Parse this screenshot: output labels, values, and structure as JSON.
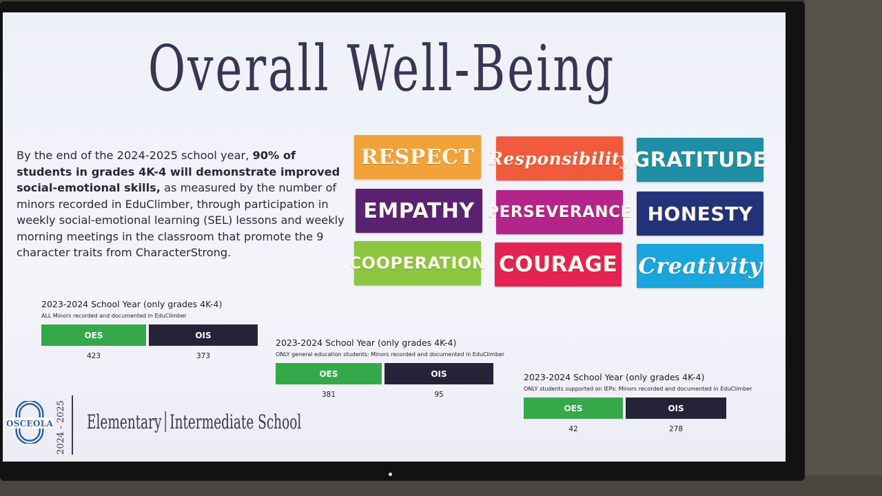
{
  "slide": {
    "title": "Overall Well-Being",
    "goal": {
      "intro": "By the end of the 2024-2025 school year, ",
      "bold": "90% of students in grades 4K-4 will demonstrate improved social-emotional skills,",
      "rest": " as measured by the number of minors recorded in EduClimber, through participation in weekly social-emotional learning (SEL) lessons and weekly morning meetings in the classroom that promote the 9 character traits from CharacterStrong."
    },
    "traits": [
      {
        "label": "RESPECT",
        "color": "#f3a23a"
      },
      {
        "label": "Responsibility",
        "color": "#f15a3c"
      },
      {
        "label": "GRATITUDE",
        "color": "#1f8fa7"
      },
      {
        "label": "EMPATHY",
        "color": "#5a2271"
      },
      {
        "label": "PERSEVERANCE",
        "color": "#b3258a"
      },
      {
        "label": "HONESTY",
        "color": "#23337a"
      },
      {
        "label": "COOPERATION",
        "color": "#8cc63e"
      },
      {
        "label": "COURAGE",
        "color": "#e42352"
      },
      {
        "label": "Creativity",
        "color": "#1aa5dc"
      }
    ],
    "panels": [
      {
        "title": "2023-2024 School Year (only grades 4K-4)",
        "subtitle": "ALL Minors recorded and documented in EduClimber",
        "oes_label": "OES",
        "ois_label": "OIS",
        "oes_value": "423",
        "ois_value": "373"
      },
      {
        "title": "2023-2024 School Year (only grades 4K-4)",
        "subtitle": "ONLY general education students:   Minors recorded and documented in EduClimber",
        "oes_label": "OES",
        "ois_label": "OIS",
        "oes_value": "381",
        "ois_value": "95"
      },
      {
        "title": "2023-2024 School Year (only grades 4K-4)",
        "subtitle": "ONLY students supported on IEPs:   Minors recorded and documented in EduClimber",
        "oes_label": "OES",
        "ois_label": "OIS",
        "oes_value": "42",
        "ois_value": "278"
      }
    ],
    "branding": {
      "logo_text": "OSCEOLA",
      "years": "2024 - 2025",
      "school_left": "Elementary",
      "school_right": "Intermediate School"
    },
    "colors": {
      "oes": "#35a84a",
      "ois": "#262338",
      "title": "#3b3452"
    }
  }
}
